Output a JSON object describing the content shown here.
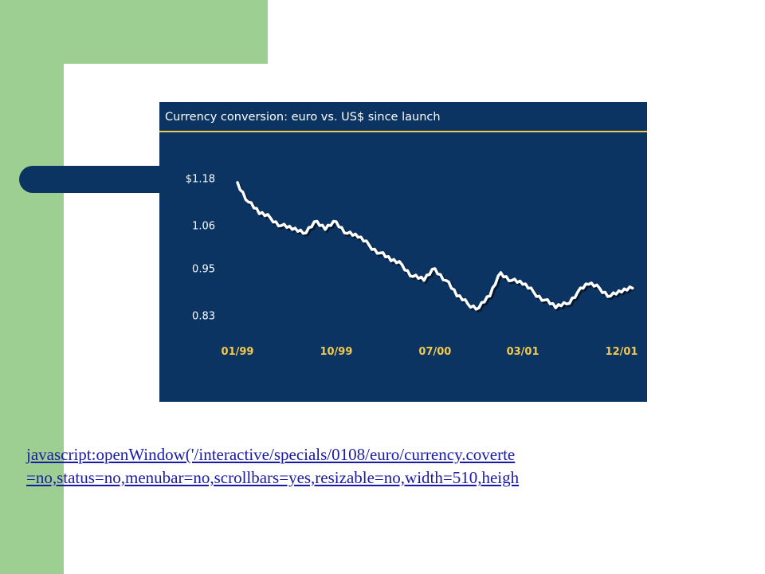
{
  "colors": {
    "sidebar": "#9dcf93",
    "chart_background": "#0b3463",
    "pill": "#0b3463",
    "title_bar_rule": "#f2c94c",
    "x_tick_color": "#f2c94c",
    "line_color": "#ffffff",
    "link_color": "#1a1aa6"
  },
  "link": {
    "line1": "javascript:openWindow('/interactive/specials/0108/euro/currency.coverte",
    "line2": "=no,status=no,menubar=no,scrollbars=yes,resizable=no,width=510,heigh"
  },
  "chart_data": {
    "type": "line",
    "title": "Currency conversion: euro vs. US$ since launch",
    "xlabel": "",
    "ylabel": "",
    "y_tick_labels": [
      "$1.18",
      "1.06",
      "0.95",
      "0.83"
    ],
    "y_ticks": [
      1.18,
      1.06,
      0.95,
      0.83
    ],
    "x_tick_labels": [
      "01/99",
      "10/99",
      "07/00",
      "03/01",
      "12/01"
    ],
    "x_ticks": [
      "1999-01",
      "1999-10",
      "2000-07",
      "2001-03",
      "2001-12"
    ],
    "ylim": [
      0.83,
      1.18
    ],
    "grid": false,
    "series": [
      {
        "name": "",
        "x": [
          "1999-01",
          "1999-02",
          "1999-03",
          "1999-04",
          "1999-05",
          "1999-06",
          "1999-07",
          "1999-08",
          "1999-09",
          "1999-10",
          "1999-11",
          "1999-12",
          "2000-01",
          "2000-02",
          "2000-03",
          "2000-04",
          "2000-05",
          "2000-06",
          "2000-07",
          "2000-08",
          "2000-09",
          "2000-10",
          "2000-11",
          "2000-12",
          "2001-01",
          "2001-02",
          "2001-03",
          "2001-04",
          "2001-05",
          "2001-06",
          "2001-07",
          "2001-08",
          "2001-09",
          "2001-10",
          "2001-11",
          "2001-12",
          "2002-01"
        ],
        "values": [
          1.17,
          1.12,
          1.09,
          1.08,
          1.06,
          1.05,
          1.04,
          1.07,
          1.05,
          1.07,
          1.04,
          1.03,
          1.01,
          0.99,
          0.97,
          0.96,
          0.93,
          0.92,
          0.95,
          0.92,
          0.88,
          0.86,
          0.85,
          0.88,
          0.94,
          0.92,
          0.91,
          0.89,
          0.87,
          0.85,
          0.86,
          0.89,
          0.91,
          0.9,
          0.88,
          0.89,
          0.9
        ]
      }
    ]
  }
}
